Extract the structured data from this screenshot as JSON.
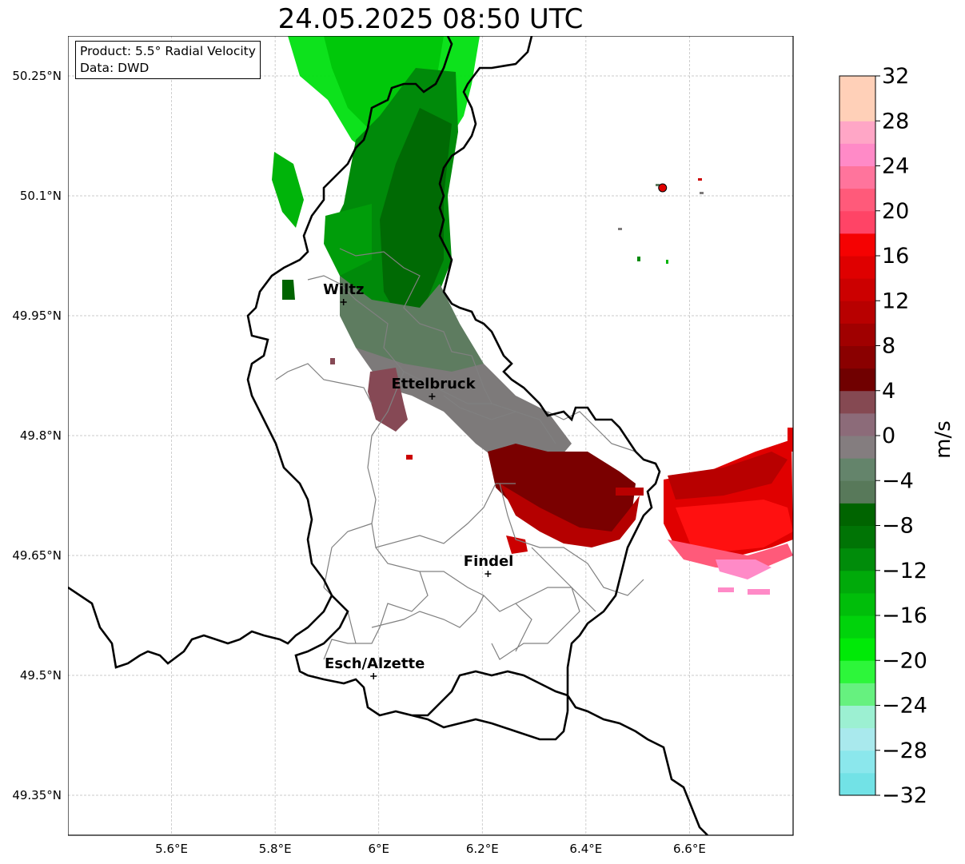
{
  "title": "24.05.2025 08:50 UTC",
  "info": {
    "product": "Product: 5.5° Radial Velocity",
    "source": "Data: DWD"
  },
  "map": {
    "lon_range": [
      5.4,
      6.8
    ],
    "lat_range": [
      49.3,
      50.3
    ],
    "x_ticks": [
      {
        "value": 5.6,
        "label": "5.6°E"
      },
      {
        "value": 5.8,
        "label": "5.8°E"
      },
      {
        "value": 6.0,
        "label": "6°E"
      },
      {
        "value": 6.2,
        "label": "6.2°E"
      },
      {
        "value": 6.4,
        "label": "6.4°E"
      },
      {
        "value": 6.6,
        "label": "6.6°E"
      }
    ],
    "y_ticks": [
      {
        "value": 49.35,
        "label": "49.35°N"
      },
      {
        "value": 49.5,
        "label": "49.5°N"
      },
      {
        "value": 49.65,
        "label": "49.65°N"
      },
      {
        "value": 49.8,
        "label": "49.8°N"
      },
      {
        "value": 49.95,
        "label": "49.95°N"
      },
      {
        "value": 50.1,
        "label": "50.1°N"
      },
      {
        "value": 50.25,
        "label": "50.25°N"
      }
    ],
    "cities": [
      {
        "name": "Wiltz",
        "lon": 5.932,
        "lat": 49.967
      },
      {
        "name": "Ettelbruck",
        "lon": 6.103,
        "lat": 49.849
      },
      {
        "name": "Findel",
        "lon": 6.211,
        "lat": 49.627
      },
      {
        "name": "Esch/Alzette",
        "lon": 5.99,
        "lat": 49.499
      }
    ],
    "radar_site": {
      "lon": 6.548,
      "lat": 50.11
    },
    "grid": true
  },
  "colorbar": {
    "label": "m/s",
    "min": -32,
    "max": 32,
    "step": 4,
    "tick_labels": [
      "−32",
      "−28",
      "−24",
      "−20",
      "−16",
      "−12",
      "−8",
      "−4",
      "0",
      "4",
      "8",
      "12",
      "16",
      "20",
      "24",
      "28",
      "32"
    ],
    "colors": [
      "#72e2e6",
      "#8be7ec",
      "#a9e9ed",
      "#9cf0d2",
      "#66f17f",
      "#2df63a",
      "#00ea07",
      "#00d30b",
      "#00be0a",
      "#00aa0a",
      "#008c0a",
      "#007405",
      "#006400",
      "#58795a",
      "#64846b",
      "#847d7f",
      "#8c6b79",
      "#854952",
      "#700000",
      "#8a0000",
      "#a00000",
      "#b80000",
      "#cc0000",
      "#df0000",
      "#f50202",
      "#ff4466",
      "#ff5a7a",
      "#ff749c",
      "#ff8ac7",
      "#ffa6c6",
      "#ffd0b8",
      "#ffd0b8"
    ]
  }
}
